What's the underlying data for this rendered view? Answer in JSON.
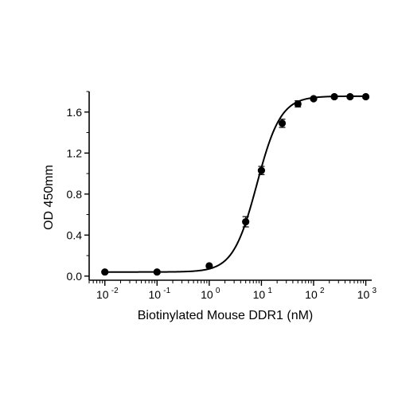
{
  "chart_data": {
    "type": "scatter",
    "title": "",
    "xlabel": "Biotinylated Mouse DDR1 (nM)",
    "ylabel": "OD 450mm",
    "xscale": "log",
    "xlim": [
      0.005,
      1300
    ],
    "ylim": [
      -0.04,
      1.8
    ],
    "x_ticks": [
      {
        "value": 0.01,
        "base": "10",
        "exp": "-2"
      },
      {
        "value": 0.1,
        "base": "10",
        "exp": "-1"
      },
      {
        "value": 1,
        "base": "10",
        "exp": "0"
      },
      {
        "value": 10,
        "base": "10",
        "exp": "1"
      },
      {
        "value": 100,
        "base": "10",
        "exp": "2"
      },
      {
        "value": 1000,
        "base": "10",
        "exp": "3"
      }
    ],
    "y_ticks": [
      {
        "value": 0.0,
        "label": "0.0"
      },
      {
        "value": 0.4,
        "label": "0.4"
      },
      {
        "value": 0.8,
        "label": "0.8"
      },
      {
        "value": 1.2,
        "label": "1.2"
      },
      {
        "value": 1.6,
        "label": "1.6"
      }
    ],
    "series": [
      {
        "x": [
          0.01,
          0.1,
          1,
          5,
          10,
          25,
          50,
          100,
          250,
          500,
          1000
        ],
        "y": [
          0.04,
          0.04,
          0.1,
          0.53,
          1.03,
          1.49,
          1.68,
          1.73,
          1.75,
          1.75,
          1.75
        ],
        "err": [
          0.0,
          0.0,
          0.01,
          0.05,
          0.04,
          0.04,
          0.03,
          0.01,
          0.0,
          0.0,
          0.0
        ]
      }
    ],
    "fit": {
      "model": "4PL",
      "bottom": 0.04,
      "top": 1.755,
      "ec50": 8.2,
      "hill": 1.9
    },
    "grid": false,
    "legend": "none",
    "colors": {
      "marker": "#000000",
      "line": "#000000",
      "axes": "#000000"
    }
  }
}
